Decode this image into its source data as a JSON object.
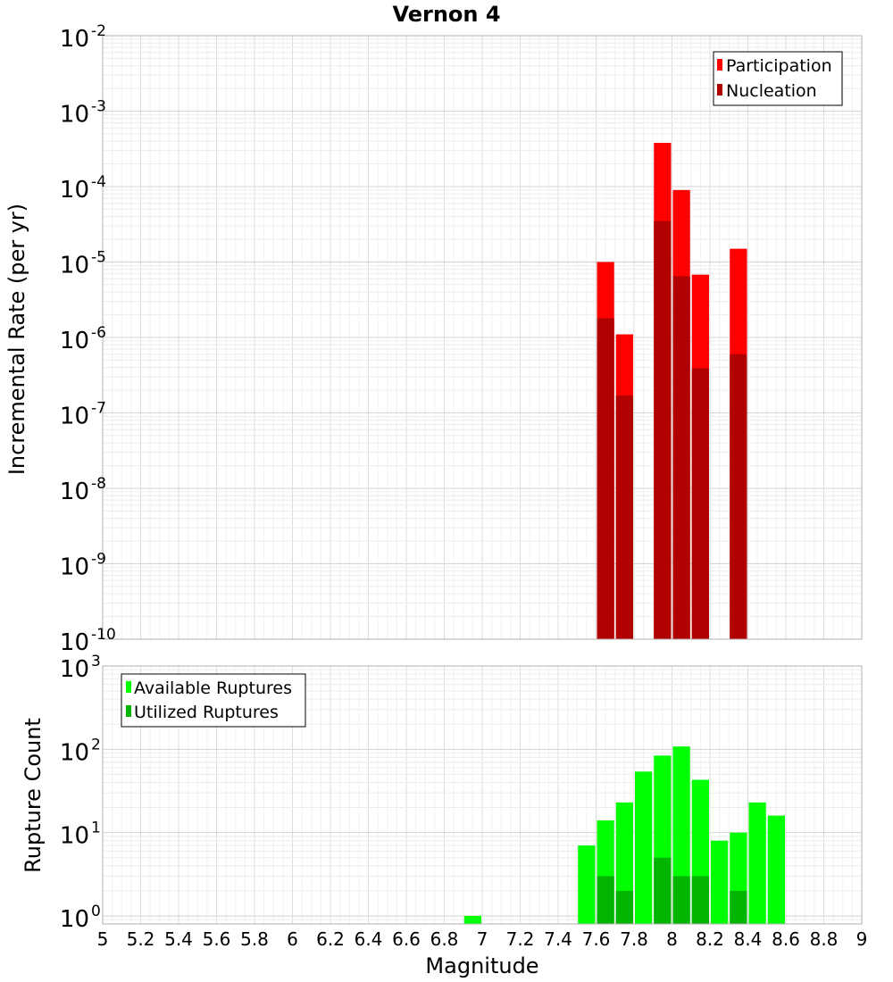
{
  "chart_data": [
    {
      "type": "bar",
      "title": "Vernon 4",
      "ylabel": "Incremental Rate (per yr)",
      "xlabel": "",
      "yscale": "log",
      "ylim": [
        1e-10,
        0.01
      ],
      "xlim": [
        5,
        9
      ],
      "grid": true,
      "legend_placement": "top-right",
      "bar_width": 0.1,
      "y_tick_exponents": [
        "-2",
        "-3",
        "-4",
        "-5",
        "-6",
        "-7",
        "-8",
        "-9",
        "-10"
      ],
      "series": [
        {
          "name": "Participation",
          "color": "#ff0000",
          "x": [
            7.65,
            7.75,
            7.95,
            8.05,
            8.15,
            8.35
          ],
          "values": [
            1e-05,
            1.1e-06,
            0.00038,
            9e-05,
            6.8e-06,
            1.5e-05
          ]
        },
        {
          "name": "Nucleation",
          "color": "#b00000",
          "x": [
            7.65,
            7.75,
            7.95,
            8.05,
            8.15,
            8.35
          ],
          "values": [
            1.8e-06,
            1.7e-07,
            3.5e-05,
            6.5e-06,
            3.9e-07,
            6e-07
          ]
        }
      ]
    },
    {
      "type": "bar",
      "title": "",
      "ylabel": "Rupture Count",
      "xlabel": "Magnitude",
      "yscale": "log",
      "ylim": [
        0.8,
        1000
      ],
      "xlim": [
        5,
        9
      ],
      "grid": true,
      "legend_placement": "top-left",
      "bar_width": 0.1,
      "y_tick_exponents": [
        "3",
        "2",
        "1",
        "0"
      ],
      "x_tick_labels": [
        "5",
        "5.2",
        "5.4",
        "5.6",
        "5.8",
        "6",
        "6.2",
        "6.4",
        "6.6",
        "6.8",
        "7",
        "7.2",
        "7.4",
        "7.6",
        "7.8",
        "8",
        "8.2",
        "8.4",
        "8.6",
        "8.8",
        "9"
      ],
      "series": [
        {
          "name": "Available Ruptures",
          "color": "#00ff00",
          "x": [
            6.95,
            7.55,
            7.65,
            7.75,
            7.85,
            7.95,
            8.05,
            8.15,
            8.25,
            8.35,
            8.45,
            8.55
          ],
          "values": [
            1,
            7,
            14,
            23,
            54,
            84,
            108,
            43,
            8,
            10,
            23,
            16
          ]
        },
        {
          "name": "Utilized Ruptures",
          "color": "#00b400",
          "x": [
            7.65,
            7.75,
            7.95,
            8.05,
            8.15,
            8.35
          ],
          "values": [
            3,
            2,
            5,
            3,
            3,
            2
          ]
        }
      ]
    }
  ]
}
